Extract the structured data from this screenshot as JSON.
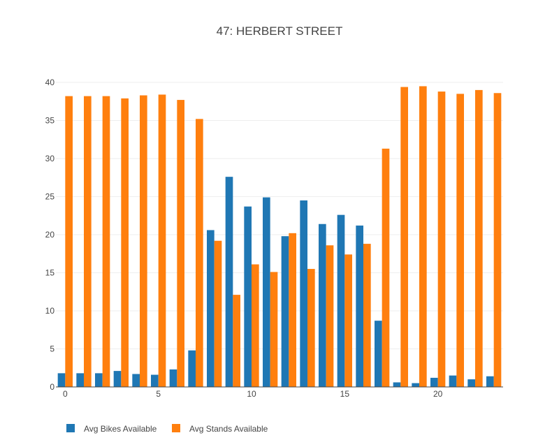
{
  "chart_data": {
    "type": "bar",
    "title": "47: HERBERT STREET",
    "xlabel": "",
    "ylabel": "",
    "x": [
      0,
      1,
      2,
      3,
      4,
      5,
      6,
      7,
      8,
      9,
      10,
      11,
      12,
      13,
      14,
      15,
      16,
      17,
      18,
      19,
      20,
      21,
      22,
      23
    ],
    "xlim": [
      -0.5,
      23.5
    ],
    "ylim": [
      0,
      40
    ],
    "x_ticks": [
      0,
      5,
      10,
      15,
      20
    ],
    "y_ticks": [
      0,
      5,
      10,
      15,
      20,
      25,
      30,
      35,
      40
    ],
    "grid": true,
    "legend_position": "bottom-left",
    "series": [
      {
        "name": "Avg Bikes Available",
        "color": "#1f77b4",
        "values": [
          1.8,
          1.8,
          1.8,
          2.1,
          1.7,
          1.6,
          2.3,
          4.8,
          20.6,
          27.6,
          23.7,
          24.9,
          19.8,
          24.5,
          21.4,
          22.6,
          21.2,
          8.7,
          0.6,
          0.5,
          1.2,
          1.5,
          1.0,
          1.4
        ]
      },
      {
        "name": "Avg Stands Available",
        "color": "#ff7f0e",
        "values": [
          38.2,
          38.2,
          38.2,
          37.9,
          38.3,
          38.4,
          37.7,
          35.2,
          19.2,
          12.1,
          16.1,
          15.1,
          20.2,
          15.5,
          18.6,
          17.4,
          18.8,
          31.3,
          39.4,
          39.5,
          38.8,
          38.5,
          39.0,
          38.6
        ]
      }
    ]
  }
}
